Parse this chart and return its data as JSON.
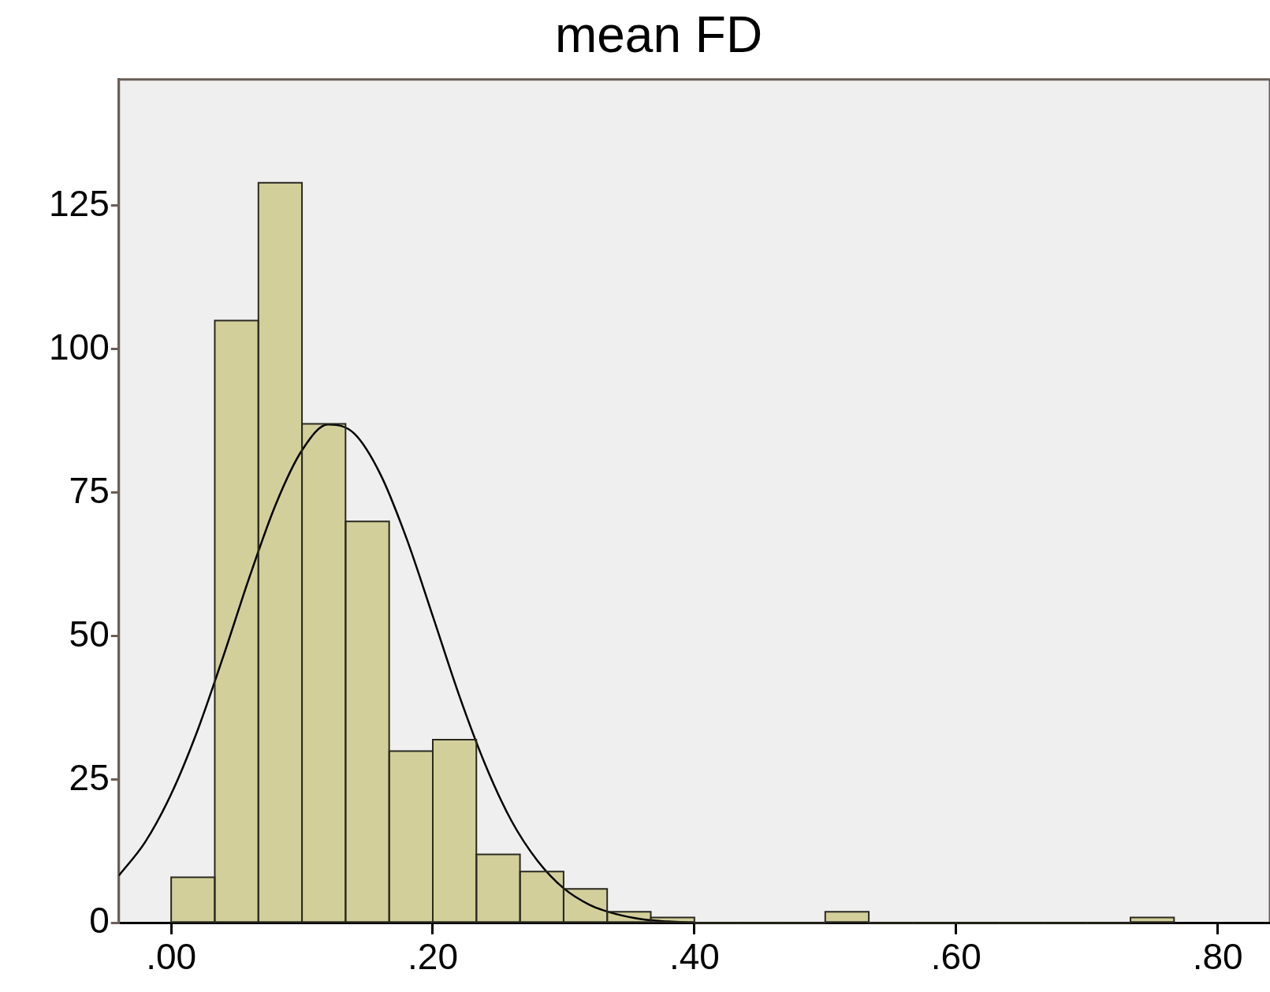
{
  "chart_data": {
    "type": "histogram",
    "title": "mean FD",
    "bins": [
      0,
      0.0333,
      0.0667,
      0.1,
      0.1333,
      0.1667,
      0.2,
      0.2333,
      0.2667,
      0.3,
      0.3333,
      0.3667,
      0.4,
      0.4333,
      0.4667,
      0.5,
      0.5333,
      0.5667,
      0.6,
      0.6333,
      0.6667,
      0.7,
      0.7333,
      0.7667
    ],
    "values": [
      8,
      105,
      129,
      87,
      70,
      30,
      32,
      12,
      9,
      6,
      2,
      1,
      0,
      0,
      0,
      2,
      0,
      0,
      0,
      0,
      0,
      0,
      1
    ],
    "color": "#d3cf9b",
    "series": [
      {
        "type": "line",
        "color": "#000000",
        "x": [
          -0.04,
          -0.02,
          0,
          0.02,
          0.04,
          0.06,
          0.08,
          0.1,
          0.12,
          0.14,
          0.16,
          0.18,
          0.2,
          0.22,
          0.24,
          0.26,
          0.28,
          0.3,
          0.32,
          0.34,
          0.36,
          0.38,
          0.4
        ],
        "values": [
          8.3,
          14.1,
          22.5,
          33.5,
          46.6,
          60.4,
          73,
          82.4,
          86.9,
          85.3,
          78.2,
          67,
          53.5,
          39.8,
          27.7,
          17.9,
          10.9,
          6.1,
          3.2,
          1.6,
          0.7,
          0.3,
          0.1
        ]
      }
    ],
    "marker": "none",
    "xlim": [
      -0.04,
      0.84
    ],
    "ylim": [
      0,
      147
    ],
    "xticks": [
      {
        "value": 0,
        "label": ".00"
      },
      {
        "value": 0.2,
        "label": ".20"
      },
      {
        "value": 0.4,
        "label": ".40"
      },
      {
        "value": 0.6,
        "label": ".60"
      },
      {
        "value": 0.8,
        "label": ".80"
      }
    ],
    "yticks": [
      0,
      25,
      50,
      75,
      100,
      125
    ]
  }
}
